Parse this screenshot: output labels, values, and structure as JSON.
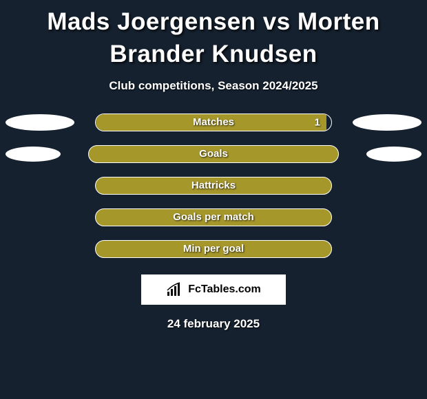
{
  "title": "Mads Joergensen vs Morten Brander Knudsen",
  "subtitle": "Club competitions, Season 2024/2025",
  "date_text": "24 february 2025",
  "logo_text": "FcTables.com",
  "colors": {
    "background": "#15212f",
    "bar_fill": "#a6972b",
    "bar_border": "#ffffff",
    "pill": "#ffffff",
    "text": "#ffffff"
  },
  "rows": [
    {
      "label": "Matches",
      "left_fill_pct": 98,
      "right_value": "1",
      "show_side_pills": true,
      "pill_size": "normal",
      "bar_bg_is_fill": false
    },
    {
      "label": "Goals",
      "left_fill_pct": 100,
      "right_value": "",
      "show_side_pills": true,
      "pill_size": "small",
      "bar_bg_is_fill": true
    },
    {
      "label": "Hattricks",
      "left_fill_pct": 100,
      "right_value": "",
      "show_side_pills": false,
      "pill_size": "normal",
      "bar_bg_is_fill": true
    },
    {
      "label": "Goals per match",
      "left_fill_pct": 100,
      "right_value": "",
      "show_side_pills": false,
      "pill_size": "normal",
      "bar_bg_is_fill": true
    },
    {
      "label": "Min per goal",
      "left_fill_pct": 100,
      "right_value": "",
      "show_side_pills": false,
      "pill_size": "normal",
      "bar_bg_is_fill": true
    }
  ]
}
